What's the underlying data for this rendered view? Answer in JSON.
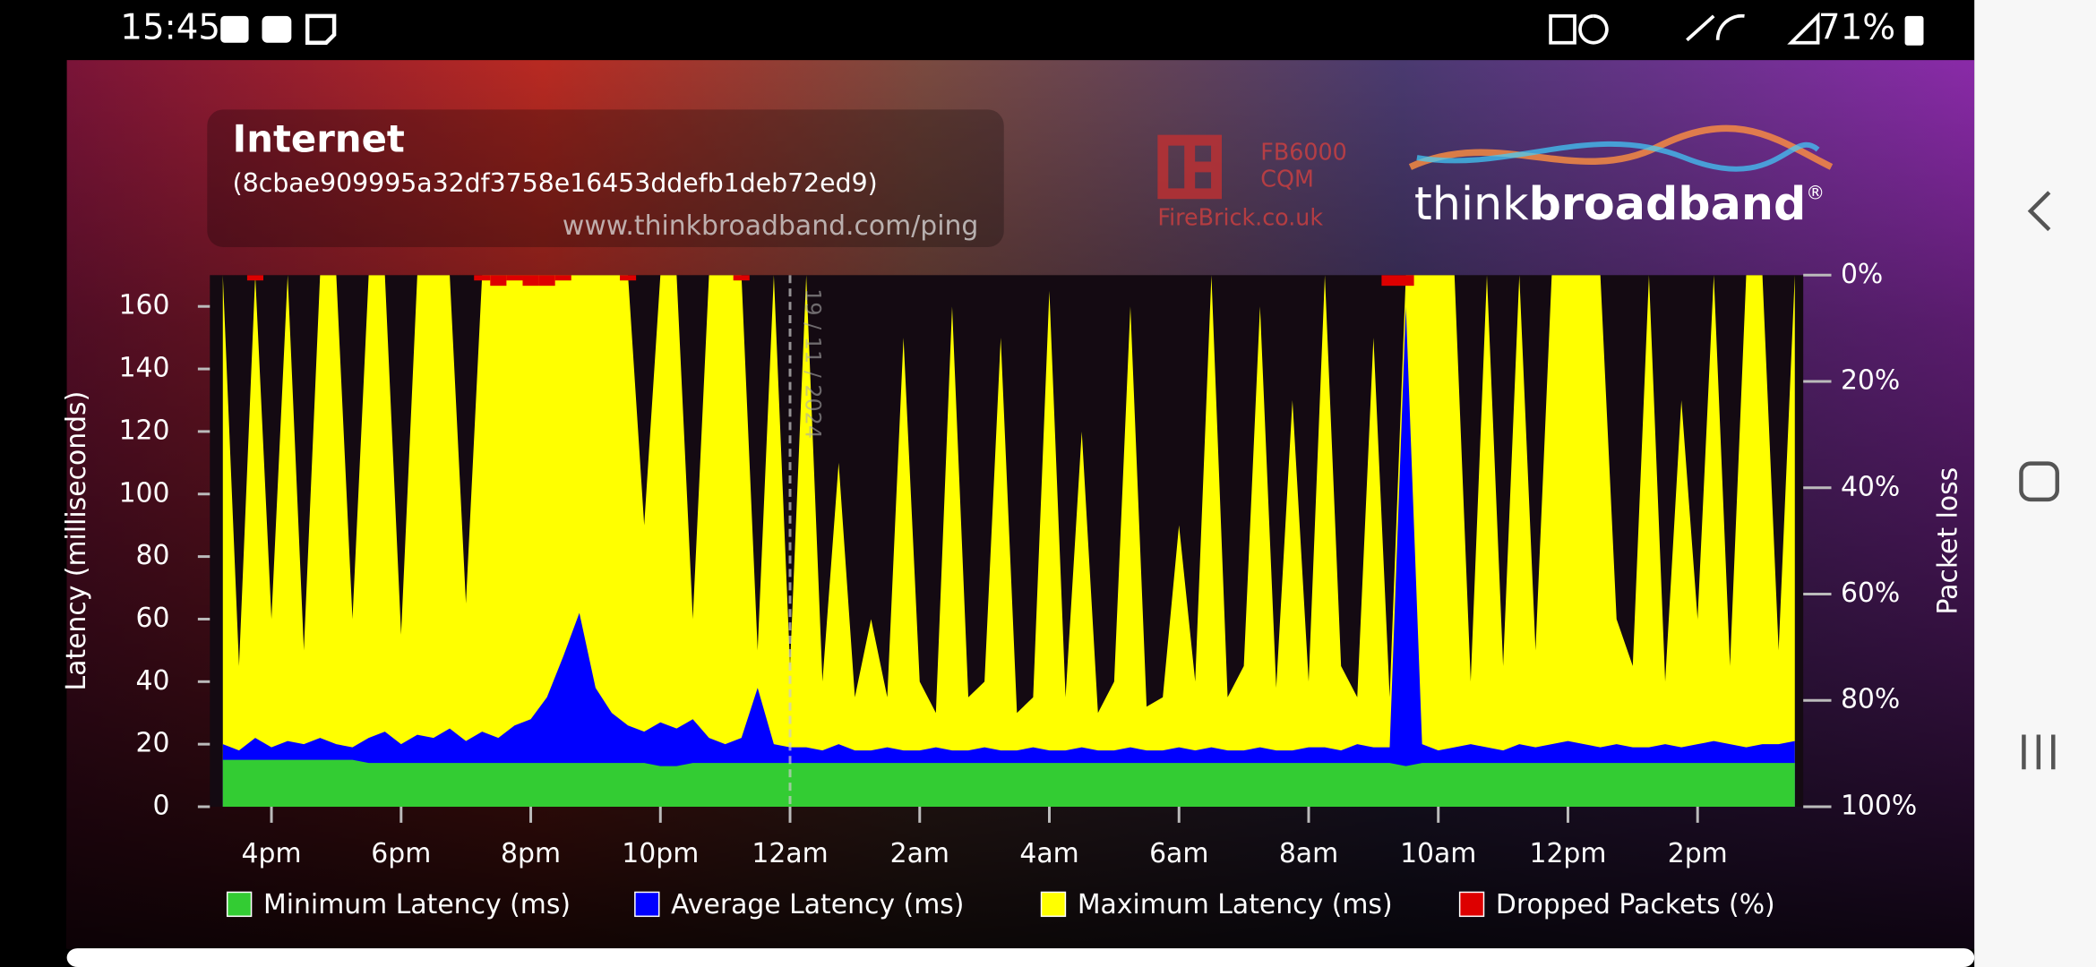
{
  "status_bar": {
    "time": "15:45",
    "battery": "71%"
  },
  "chart_data": {
    "type": "area",
    "title": "Internet",
    "subtitle": "(8cbae909995a32df3758e16453ddefb1deb72ed9)",
    "source": "www.thinkbroadband.com/ping",
    "branding": {
      "device": "FB6000",
      "mode": "CQM",
      "vendor": "FireBrick.co.uk",
      "brand_light": "think",
      "brand_bold": "broadband",
      "registered": "®"
    },
    "ylabel": "Latency (milliseconds)",
    "y2label": "Packet loss",
    "x": [
      15.25,
      15.5,
      15.75,
      16,
      16.25,
      16.5,
      16.75,
      17,
      17.25,
      17.5,
      17.75,
      18,
      18.25,
      18.5,
      18.75,
      19,
      19.25,
      19.5,
      19.75,
      20,
      20.25,
      20.5,
      20.75,
      21,
      21.25,
      21.5,
      21.75,
      22,
      22.25,
      22.5,
      22.75,
      23,
      23.25,
      23.5,
      23.75,
      24,
      24.25,
      24.5,
      24.75,
      25,
      25.25,
      25.5,
      25.75,
      26,
      26.25,
      26.5,
      26.75,
      27,
      27.25,
      27.5,
      27.75,
      28,
      28.25,
      28.5,
      28.75,
      29,
      29.25,
      29.5,
      29.75,
      30,
      30.25,
      30.5,
      30.75,
      31,
      31.25,
      31.5,
      31.75,
      32,
      32.25,
      32.5,
      32.75,
      33,
      33.25,
      33.5,
      33.75,
      34,
      34.25,
      34.5,
      34.75,
      35,
      35.25,
      35.5,
      35.75,
      36,
      36.25,
      36.5,
      36.75,
      37,
      37.25,
      37.5,
      37.75,
      38,
      38.25,
      38.5,
      38.75,
      39,
      39.25,
      39.5
    ],
    "xlim": [
      15.05,
      39.63
    ],
    "xticks": [
      {
        "value": 16,
        "label": "4pm"
      },
      {
        "value": 18,
        "label": "6pm"
      },
      {
        "value": 20,
        "label": "8pm"
      },
      {
        "value": 22,
        "label": "10pm"
      },
      {
        "value": 24,
        "label": "12am"
      },
      {
        "value": 26,
        "label": "2am"
      },
      {
        "value": 28,
        "label": "4am"
      },
      {
        "value": 30,
        "label": "6am"
      },
      {
        "value": 32,
        "label": "8am"
      },
      {
        "value": 34,
        "label": "10am"
      },
      {
        "value": 36,
        "label": "12pm"
      },
      {
        "value": 38,
        "label": "2pm"
      }
    ],
    "ylim": [
      0,
      170
    ],
    "yticks": [
      0,
      20,
      40,
      60,
      80,
      100,
      120,
      140,
      160
    ],
    "y2lim": [
      100,
      0
    ],
    "y2ticks": [
      {
        "value": 0,
        "label": "0%"
      },
      {
        "value": 20,
        "label": "20%"
      },
      {
        "value": 40,
        "label": "40%"
      },
      {
        "value": 60,
        "label": "60%"
      },
      {
        "value": 80,
        "label": "80%"
      },
      {
        "value": 100,
        "label": "100%"
      }
    ],
    "date_marker": {
      "x": 24,
      "label": "19 / 11 / 2024"
    },
    "series": [
      {
        "name": "Minimum Latency (ms)",
        "color": "#33cc33",
        "values": [
          15,
          15,
          15,
          15,
          15,
          15,
          15,
          15,
          15,
          14,
          14,
          14,
          14,
          14,
          14,
          14,
          14,
          14,
          14,
          14,
          14,
          14,
          14,
          14,
          14,
          14,
          14,
          13,
          13,
          14,
          14,
          14,
          14,
          14,
          14,
          14,
          14,
          14,
          14,
          14,
          14,
          14,
          14,
          14,
          14,
          14,
          14,
          14,
          14,
          14,
          14,
          14,
          14,
          14,
          14,
          14,
          14,
          14,
          14,
          14,
          14,
          14,
          14,
          14,
          14,
          14,
          14,
          14,
          14,
          14,
          14,
          14,
          14,
          13,
          14,
          14,
          14,
          14,
          14,
          14,
          14,
          14,
          14,
          14,
          14,
          14,
          14,
          14,
          14,
          14,
          14,
          14,
          14,
          14,
          14,
          14,
          14,
          14
        ]
      },
      {
        "name": "Average Latency (ms)",
        "color": "#0000ff",
        "values": [
          20,
          18,
          22,
          19,
          21,
          20,
          22,
          20,
          19,
          22,
          24,
          20,
          23,
          22,
          25,
          21,
          24,
          22,
          26,
          28,
          35,
          48,
          62,
          38,
          30,
          26,
          24,
          27,
          25,
          28,
          22,
          20,
          22,
          38,
          20,
          19,
          19,
          18,
          20,
          18,
          18,
          19,
          18,
          18,
          19,
          18,
          18,
          19,
          18,
          18,
          19,
          18,
          18,
          19,
          18,
          18,
          19,
          18,
          18,
          19,
          18,
          19,
          18,
          18,
          19,
          18,
          18,
          19,
          19,
          18,
          20,
          19,
          19,
          160,
          20,
          18,
          19,
          20,
          19,
          18,
          20,
          19,
          20,
          21,
          20,
          19,
          20,
          19,
          19,
          20,
          19,
          20,
          21,
          20,
          19,
          20,
          20,
          21
        ]
      },
      {
        "name": "Maximum Latency (ms)",
        "color": "#ffff00",
        "values": [
          170,
          45,
          170,
          60,
          170,
          50,
          170,
          170,
          60,
          170,
          170,
          55,
          170,
          170,
          170,
          65,
          170,
          170,
          170,
          170,
          170,
          170,
          170,
          170,
          170,
          170,
          90,
          170,
          170,
          60,
          170,
          170,
          170,
          50,
          170,
          45,
          170,
          40,
          110,
          35,
          60,
          35,
          150,
          40,
          30,
          160,
          35,
          40,
          150,
          30,
          35,
          165,
          35,
          120,
          30,
          40,
          160,
          32,
          35,
          90,
          40,
          170,
          35,
          45,
          160,
          38,
          130,
          40,
          170,
          45,
          35,
          150,
          35,
          170,
          170,
          170,
          170,
          40,
          170,
          45,
          170,
          50,
          170,
          170,
          170,
          170,
          60,
          45,
          170,
          40,
          130,
          60,
          170,
          45,
          170,
          170,
          50,
          170
        ]
      },
      {
        "name": "Dropped Packets (%)",
        "color": "#dd0000",
        "axis": "y2",
        "values": [
          0,
          0,
          1,
          0,
          0,
          0,
          0,
          0,
          0,
          0,
          0,
          0,
          0,
          0,
          0,
          0,
          1,
          2,
          1,
          2,
          2,
          1,
          0,
          0,
          0,
          1,
          0,
          0,
          0,
          0,
          0,
          0,
          1,
          0,
          0,
          0,
          0,
          0,
          0,
          0,
          0,
          0,
          0,
          0,
          0,
          0,
          0,
          0,
          0,
          0,
          0,
          0,
          0,
          0,
          0,
          0,
          0,
          0,
          0,
          0,
          0,
          0,
          0,
          0,
          0,
          0,
          0,
          0,
          0,
          0,
          0,
          0,
          2,
          2,
          0,
          0,
          0,
          0,
          0,
          0,
          0,
          0,
          0,
          0,
          0,
          0,
          0,
          0,
          0,
          0,
          0,
          0,
          0,
          0,
          0,
          0,
          0,
          0
        ]
      }
    ]
  }
}
